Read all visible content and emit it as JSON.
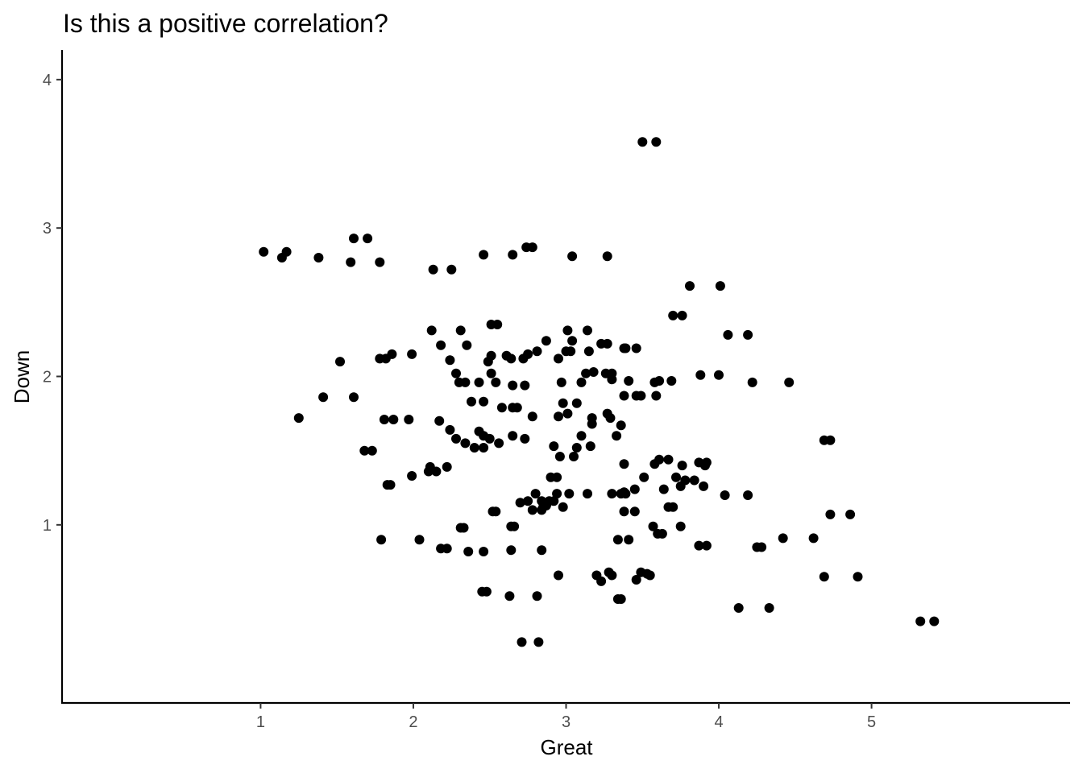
{
  "chart_data": {
    "type": "scatter",
    "title": "Is this a positive correlation?",
    "xlabel": "Great",
    "ylabel": "Down",
    "xlim": [
      -0.3,
      6.3
    ],
    "ylim": [
      -0.2,
      4.2
    ],
    "x_ticks": [
      1,
      2,
      3,
      4,
      5
    ],
    "y_ticks": [
      1,
      2,
      3,
      4
    ],
    "grid": false,
    "legend": "none",
    "point_color": "#000000",
    "series": [
      {
        "points": [
          [
            1.02,
            2.84
          ],
          [
            1.14,
            2.8
          ],
          [
            1.17,
            2.84
          ],
          [
            1.38,
            2.8
          ],
          [
            1.59,
            2.77
          ],
          [
            1.61,
            2.93
          ],
          [
            1.7,
            2.93
          ],
          [
            1.78,
            2.77
          ],
          [
            2.46,
            2.82
          ],
          [
            2.65,
            2.82
          ],
          [
            2.74,
            2.87
          ],
          [
            2.78,
            2.87
          ],
          [
            3.04,
            2.81
          ],
          [
            3.27,
            2.81
          ],
          [
            2.13,
            2.72
          ],
          [
            2.25,
            2.72
          ],
          [
            3.5,
            3.58
          ],
          [
            3.59,
            3.58
          ],
          [
            3.81,
            2.61
          ],
          [
            4.01,
            2.61
          ],
          [
            3.7,
            2.41
          ],
          [
            3.76,
            2.41
          ],
          [
            4.06,
            2.28
          ],
          [
            4.19,
            2.28
          ],
          [
            3.39,
            2.19
          ],
          [
            3.46,
            2.19
          ],
          [
            3.88,
            2.01
          ],
          [
            4.0,
            2.01
          ],
          [
            4.22,
            1.96
          ],
          [
            4.46,
            1.96
          ],
          [
            1.52,
            2.1
          ],
          [
            1.78,
            2.12
          ],
          [
            1.82,
            2.12
          ],
          [
            1.86,
            2.15
          ],
          [
            1.99,
            2.15
          ],
          [
            1.41,
            1.86
          ],
          [
            1.61,
            1.86
          ],
          [
            1.25,
            1.72
          ],
          [
            1.81,
            1.71
          ],
          [
            1.87,
            1.71
          ],
          [
            1.97,
            1.71
          ],
          [
            1.68,
            1.5
          ],
          [
            1.73,
            1.5
          ],
          [
            1.83,
            1.27
          ],
          [
            1.85,
            1.27
          ],
          [
            1.99,
            1.33
          ],
          [
            2.1,
            1.36
          ],
          [
            2.11,
            1.39
          ],
          [
            2.15,
            1.36
          ],
          [
            2.22,
            1.39
          ],
          [
            2.12,
            2.31
          ],
          [
            2.31,
            2.31
          ],
          [
            2.18,
            2.21
          ],
          [
            2.35,
            2.21
          ],
          [
            2.51,
            2.35
          ],
          [
            2.55,
            2.35
          ],
          [
            2.24,
            2.11
          ],
          [
            2.28,
            2.02
          ],
          [
            2.3,
            1.96
          ],
          [
            2.34,
            1.96
          ],
          [
            2.43,
            1.96
          ],
          [
            2.38,
            1.83
          ],
          [
            2.46,
            1.83
          ],
          [
            2.49,
            2.1
          ],
          [
            2.51,
            2.14
          ],
          [
            2.51,
            2.02
          ],
          [
            2.54,
            1.96
          ],
          [
            2.61,
            2.14
          ],
          [
            2.64,
            2.12
          ],
          [
            2.65,
            1.94
          ],
          [
            2.73,
            1.94
          ],
          [
            2.72,
            2.12
          ],
          [
            2.75,
            2.15
          ],
          [
            2.81,
            2.17
          ],
          [
            2.58,
            1.79
          ],
          [
            2.65,
            1.79
          ],
          [
            2.68,
            1.79
          ],
          [
            2.78,
            1.73
          ],
          [
            2.17,
            1.7
          ],
          [
            2.24,
            1.64
          ],
          [
            2.28,
            1.58
          ],
          [
            2.34,
            1.55
          ],
          [
            2.4,
            1.52
          ],
          [
            2.43,
            1.63
          ],
          [
            2.46,
            1.6
          ],
          [
            2.46,
            1.52
          ],
          [
            2.5,
            1.58
          ],
          [
            2.56,
            1.55
          ],
          [
            2.65,
            1.6
          ],
          [
            2.73,
            1.58
          ],
          [
            2.87,
            2.24
          ],
          [
            2.95,
            2.12
          ],
          [
            3.0,
            2.17
          ],
          [
            3.01,
            2.31
          ],
          [
            3.03,
            2.17
          ],
          [
            3.04,
            2.24
          ],
          [
            3.14,
            2.31
          ],
          [
            3.15,
            2.17
          ],
          [
            3.23,
            2.22
          ],
          [
            3.27,
            2.22
          ],
          [
            3.38,
            2.19
          ],
          [
            3.13,
            2.02
          ],
          [
            3.18,
            2.03
          ],
          [
            3.26,
            2.02
          ],
          [
            3.3,
            2.02
          ],
          [
            2.97,
            1.96
          ],
          [
            3.1,
            1.96
          ],
          [
            3.3,
            1.98
          ],
          [
            3.41,
            1.97
          ],
          [
            3.58,
            1.96
          ],
          [
            3.61,
            1.97
          ],
          [
            3.69,
            1.97
          ],
          [
            2.98,
            1.82
          ],
          [
            3.07,
            1.82
          ],
          [
            3.38,
            1.87
          ],
          [
            3.46,
            1.87
          ],
          [
            3.49,
            1.87
          ],
          [
            3.59,
            1.87
          ],
          [
            2.95,
            1.73
          ],
          [
            3.01,
            1.75
          ],
          [
            3.1,
            1.6
          ],
          [
            3.17,
            1.72
          ],
          [
            3.27,
            1.75
          ],
          [
            3.29,
            1.72
          ],
          [
            3.17,
            1.68
          ],
          [
            3.33,
            1.6
          ],
          [
            3.36,
            1.67
          ],
          [
            2.92,
            1.53
          ],
          [
            2.96,
            1.46
          ],
          [
            3.05,
            1.46
          ],
          [
            3.07,
            1.52
          ],
          [
            3.16,
            1.53
          ],
          [
            2.9,
            1.32
          ],
          [
            2.94,
            1.32
          ],
          [
            2.8,
            1.21
          ],
          [
            2.7,
            1.15
          ],
          [
            2.75,
            1.16
          ],
          [
            2.78,
            1.1
          ],
          [
            2.84,
            1.1
          ],
          [
            2.85,
            1.12
          ],
          [
            2.87,
            1.13
          ],
          [
            2.84,
            1.16
          ],
          [
            2.89,
            1.16
          ],
          [
            2.92,
            1.16
          ],
          [
            2.94,
            1.21
          ],
          [
            2.98,
            1.12
          ],
          [
            3.02,
            1.21
          ],
          [
            3.14,
            1.21
          ],
          [
            3.3,
            1.21
          ],
          [
            3.36,
            1.21
          ],
          [
            3.38,
            1.22
          ],
          [
            3.39,
            1.21
          ],
          [
            3.38,
            1.41
          ],
          [
            3.45,
            1.24
          ],
          [
            3.51,
            1.32
          ],
          [
            3.58,
            1.41
          ],
          [
            3.61,
            1.44
          ],
          [
            3.64,
            1.24
          ],
          [
            3.67,
            1.44
          ],
          [
            3.72,
            1.32
          ],
          [
            3.75,
            1.26
          ],
          [
            3.76,
            1.4
          ],
          [
            3.78,
            1.3
          ],
          [
            3.84,
            1.3
          ],
          [
            3.87,
            1.42
          ],
          [
            3.91,
            1.4
          ],
          [
            3.92,
            1.42
          ],
          [
            3.9,
            1.26
          ],
          [
            4.04,
            1.2
          ],
          [
            4.19,
            1.2
          ],
          [
            3.38,
            1.09
          ],
          [
            3.45,
            1.09
          ],
          [
            3.67,
            1.12
          ],
          [
            3.7,
            1.12
          ],
          [
            3.57,
            0.99
          ],
          [
            3.6,
            0.94
          ],
          [
            3.63,
            0.94
          ],
          [
            3.75,
            0.99
          ],
          [
            3.87,
            0.86
          ],
          [
            3.92,
            0.86
          ],
          [
            4.25,
            0.85
          ],
          [
            4.28,
            0.85
          ],
          [
            4.42,
            0.91
          ],
          [
            4.62,
            0.91
          ],
          [
            4.69,
            1.57
          ],
          [
            4.73,
            1.57
          ],
          [
            4.73,
            1.07
          ],
          [
            4.86,
            1.07
          ],
          [
            4.69,
            0.65
          ],
          [
            4.91,
            0.65
          ],
          [
            4.13,
            0.44
          ],
          [
            4.33,
            0.44
          ],
          [
            5.32,
            0.35
          ],
          [
            5.41,
            0.35
          ],
          [
            1.79,
            0.9
          ],
          [
            2.04,
            0.9
          ],
          [
            2.18,
            0.84
          ],
          [
            2.22,
            0.84
          ],
          [
            2.31,
            0.98
          ],
          [
            2.33,
            0.98
          ],
          [
            2.36,
            0.82
          ],
          [
            2.46,
            0.82
          ],
          [
            2.52,
            1.09
          ],
          [
            2.54,
            1.09
          ],
          [
            2.64,
            0.99
          ],
          [
            2.66,
            0.99
          ],
          [
            2.64,
            0.83
          ],
          [
            2.84,
            0.83
          ],
          [
            2.45,
            0.55
          ],
          [
            2.48,
            0.55
          ],
          [
            2.63,
            0.52
          ],
          [
            2.81,
            0.52
          ],
          [
            2.71,
            0.21
          ],
          [
            2.82,
            0.21
          ],
          [
            2.95,
            0.66
          ],
          [
            3.2,
            0.66
          ],
          [
            3.23,
            0.62
          ],
          [
            3.28,
            0.68
          ],
          [
            3.3,
            0.66
          ],
          [
            3.34,
            0.5
          ],
          [
            3.36,
            0.5
          ],
          [
            3.34,
            0.9
          ],
          [
            3.41,
            0.9
          ],
          [
            3.46,
            0.63
          ],
          [
            3.49,
            0.68
          ],
          [
            3.53,
            0.67
          ],
          [
            3.55,
            0.66
          ]
        ]
      }
    ]
  }
}
